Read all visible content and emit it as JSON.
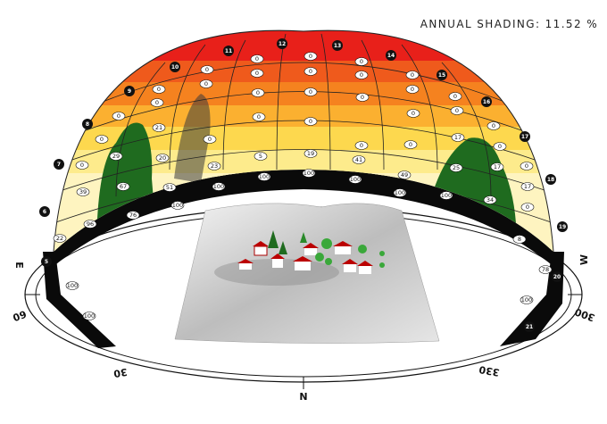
{
  "annual_shading": {
    "label": "ANNUAL SHADING:",
    "value": "11.52 %"
  },
  "hours": [
    "5",
    "6",
    "7",
    "8",
    "9",
    "10",
    "11",
    "12",
    "13",
    "14",
    "15",
    "16",
    "17",
    "18",
    "19",
    "20",
    "21"
  ],
  "compass": {
    "south": "N",
    "east": "E",
    "west": "W",
    "deg_30": "30",
    "deg_60": "60",
    "deg_300": "300",
    "deg_330": "330"
  },
  "cells": [
    [
      "0",
      "0",
      "0",
      "0",
      "0",
      "0"
    ],
    [
      "0",
      "0",
      "0",
      "0",
      "0",
      "0"
    ],
    [
      "0",
      "0",
      "0",
      "0",
      "0",
      "0"
    ],
    [
      "0",
      "0",
      "0",
      "0",
      "0",
      "0"
    ],
    [
      "21",
      "0",
      "0",
      "0",
      "17",
      "0"
    ],
    [
      "29",
      "20",
      "5",
      "19",
      "0",
      "17"
    ],
    [
      "67",
      "51",
      "23",
      "41",
      "25",
      "17"
    ],
    [
      "76",
      "100",
      "100",
      "100",
      "49",
      "34"
    ]
  ],
  "horizon_values": [
    "39",
    "96",
    "22",
    "100",
    "100",
    "100",
    "100",
    "54",
    "0",
    "8",
    "78",
    "20",
    "100",
    "21",
    "100",
    "100"
  ],
  "colors": {
    "band_top": "#e8201a",
    "band_2": "#ef5a1c",
    "band_3": "#f5821f",
    "band_4": "#fbb030",
    "band_5": "#fdd84e",
    "band_6": "#fdeb8c",
    "band_7": "#fef4c0",
    "tree": "#1f6b1f"
  }
}
